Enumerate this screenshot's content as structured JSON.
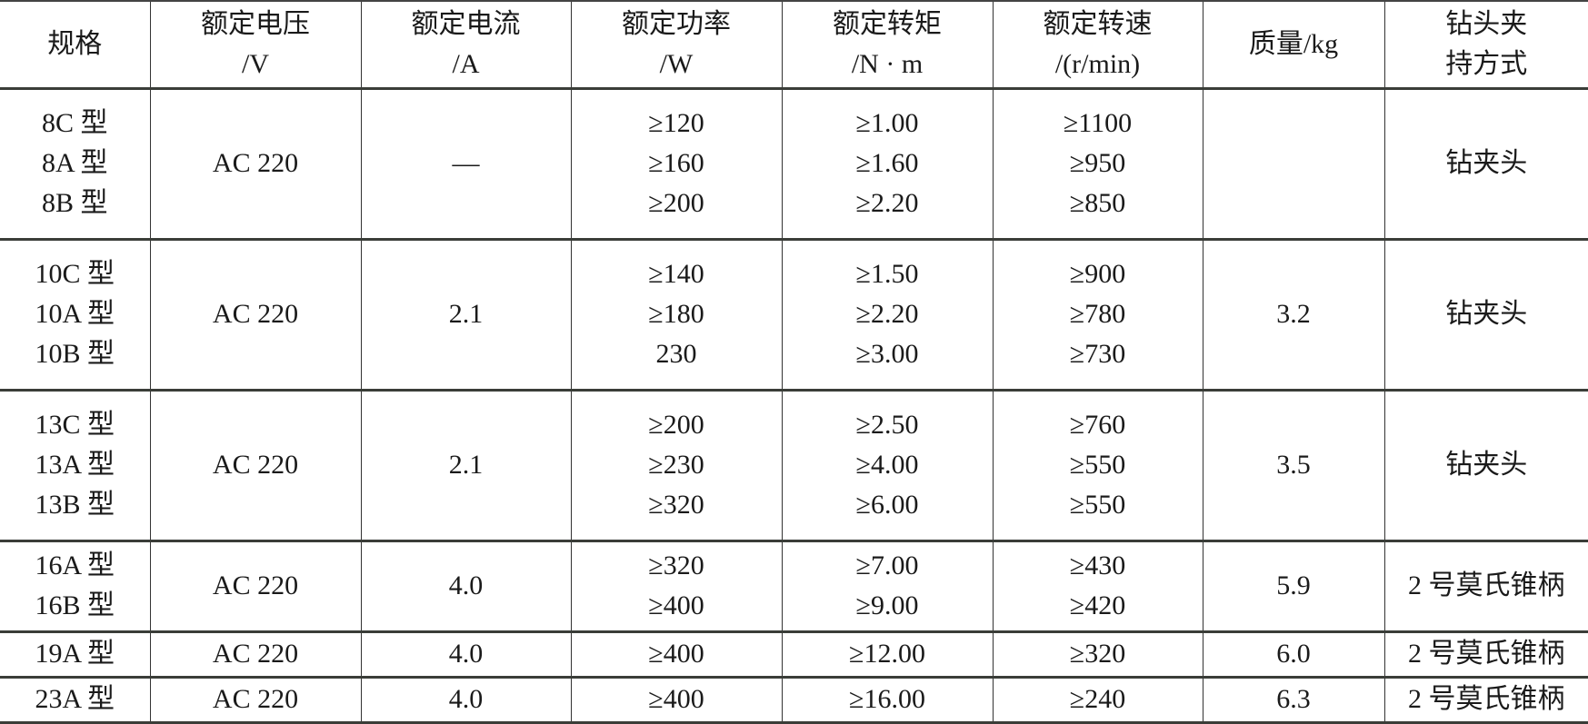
{
  "table": {
    "headers": [
      "规格",
      "额定电压\n/V",
      "额定电流\n/A",
      "额定功率\n/W",
      "额定转矩\n/N · m",
      "额定转速\n/(r/min)",
      "质量/kg",
      "钻头夹\n持方式"
    ],
    "rows": [
      [
        "8C 型\n8A 型\n8B 型",
        "AC 220",
        "—",
        "≥120\n≥160\n≥200",
        "≥1.00\n≥1.60\n≥2.20",
        "≥1100\n≥950\n≥850",
        "",
        "钻夹头"
      ],
      [
        "10C 型\n10A 型\n10B 型",
        "AC 220",
        "2.1",
        "≥140\n≥180\n230",
        "≥1.50\n≥2.20\n≥3.00",
        "≥900\n≥780\n≥730",
        "3.2",
        "钻夹头"
      ],
      [
        "13C 型\n13A 型\n13B 型",
        "AC 220",
        "2.1",
        "≥200\n≥230\n≥320",
        "≥2.50\n≥4.00\n≥6.00",
        "≥760\n≥550\n≥550",
        "3.5",
        "钻夹头"
      ],
      [
        "16A 型\n16B 型",
        "AC 220",
        "4.0",
        "≥320\n≥400",
        "≥7.00\n≥9.00",
        "≥430\n≥420",
        "5.9",
        "2 号莫氏锥柄"
      ],
      [
        "19A 型",
        "AC 220",
        "4.0",
        "≥400",
        "≥12.00",
        "≥320",
        "6.0",
        "2 号莫氏锥柄"
      ],
      [
        "23A 型",
        "AC 220",
        "4.0",
        "≥400",
        "≥16.00",
        "≥240",
        "6.3",
        "2 号莫氏锥柄"
      ]
    ]
  }
}
